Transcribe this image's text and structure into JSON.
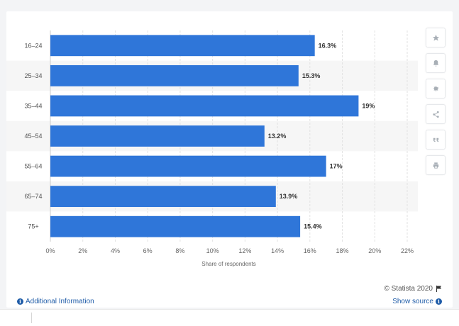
{
  "chart_data": {
    "type": "bar",
    "orientation": "horizontal",
    "categories": [
      "16-24",
      "25-34",
      "35-44",
      "45-54",
      "55-64",
      "65-74",
      "75+"
    ],
    "values": [
      16.3,
      15.3,
      19,
      13.2,
      17,
      13.9,
      15.4
    ],
    "value_labels": [
      "16.3%",
      "15.3%",
      "19%",
      "13.2%",
      "17%",
      "13.9%",
      "15.4%"
    ],
    "xticks": [
      "0%",
      "2%",
      "4%",
      "6%",
      "8%",
      "10%",
      "12%",
      "14%",
      "16%",
      "18%",
      "20%",
      "22%"
    ],
    "xlim": [
      0,
      22
    ],
    "xlabel": "Share of respondents",
    "ylabel": "",
    "title": "",
    "grid": true,
    "bar_color": "#2f76d9"
  },
  "tools": [
    {
      "icon": "star-icon"
    },
    {
      "icon": "bell-icon"
    },
    {
      "icon": "gear-icon"
    },
    {
      "icon": "share-icon"
    },
    {
      "icon": "quote-icon"
    },
    {
      "icon": "print-icon"
    }
  ],
  "footer": {
    "copyright": "© Statista 2020",
    "additional_info": "Additional Information",
    "show_source": "Show source"
  },
  "colors": {
    "link": "#1f5ca8",
    "background": "#f3f4f6"
  }
}
